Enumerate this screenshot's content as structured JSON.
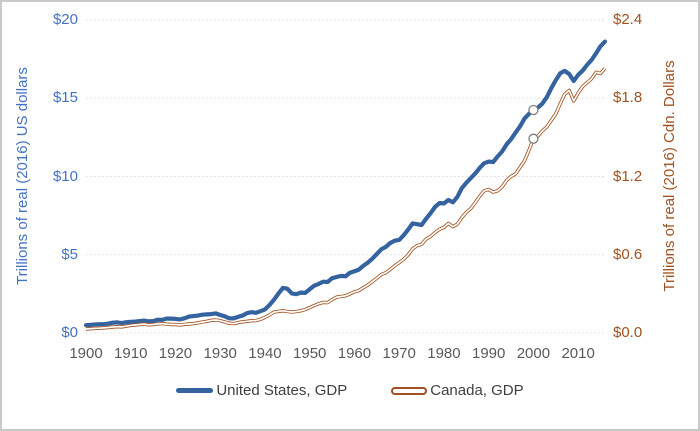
{
  "figure": {
    "background": "#FFFFFF",
    "border_color": "#CBC9C7"
  },
  "chart_data": {
    "type": "line",
    "title": "",
    "grid": "horizontal-dotted",
    "grid_color": "#D9D9D9",
    "legend_position": "bottom",
    "legend_text_color": "#404040",
    "x": {
      "label": "",
      "start": 1900,
      "end": 2016,
      "color": "#595959",
      "tick_years": [
        1900,
        1910,
        1920,
        1930,
        1940,
        1950,
        1960,
        1970,
        1980,
        1990,
        2000,
        2010
      ],
      "tick_labels": [
        "1900",
        "1910",
        "1920",
        "1930",
        "1940",
        "1950",
        "1960",
        "1970",
        "1980",
        "1990",
        "2000",
        "2010"
      ]
    },
    "y_left": {
      "label": "Trillions of real (2016) US dollars",
      "min": 0,
      "max": 20,
      "color": "#4472C4",
      "tick_values": [
        0,
        5,
        10,
        15,
        20
      ],
      "tick_labels": [
        "$0",
        "$5",
        "$10",
        "$15",
        "$20"
      ]
    },
    "y_right": {
      "label": "Trillions of real (2016) Cdn. Dollars",
      "min": 0,
      "max": 2.4,
      "color": "#A0511F",
      "tick_values": [
        0,
        0.6,
        1.2,
        1.8,
        2.4
      ],
      "tick_labels": [
        "$0.0",
        "$0.6",
        "$1.2",
        "$1.8",
        "$2.4"
      ]
    },
    "series": [
      {
        "name": "United States, GDP",
        "axis": "left",
        "color": "#3563A0",
        "style": "solid-thick",
        "first_year": 1900,
        "values": [
          0.5,
          0.52,
          0.54,
          0.56,
          0.56,
          0.6,
          0.66,
          0.68,
          0.63,
          0.69,
          0.71,
          0.73,
          0.76,
          0.79,
          0.74,
          0.76,
          0.85,
          0.84,
          0.92,
          0.92,
          0.9,
          0.87,
          0.94,
          1.05,
          1.08,
          1.11,
          1.17,
          1.19,
          1.21,
          1.25,
          1.15,
          1.07,
          0.94,
          0.93,
          1.03,
          1.12,
          1.27,
          1.33,
          1.29,
          1.39,
          1.51,
          1.78,
          2.12,
          2.52,
          2.88,
          2.83,
          2.53,
          2.48,
          2.58,
          2.56,
          2.8,
          3.02,
          3.14,
          3.28,
          3.26,
          3.5,
          3.58,
          3.65,
          3.62,
          3.85,
          3.95,
          4.05,
          4.3,
          4.5,
          4.75,
          5.05,
          5.35,
          5.5,
          5.75,
          5.9,
          5.95,
          6.25,
          6.6,
          7.0,
          6.95,
          6.9,
          7.3,
          7.65,
          8.05,
          8.3,
          8.28,
          8.5,
          8.35,
          8.7,
          9.25,
          9.6,
          9.9,
          10.2,
          10.55,
          10.85,
          10.95,
          10.92,
          11.28,
          11.6,
          12.05,
          12.38,
          12.8,
          13.2,
          13.7,
          14.0,
          14.25,
          14.4,
          14.66,
          15.07,
          15.64,
          16.16,
          16.6,
          16.75,
          16.55,
          16.1,
          16.5,
          16.76,
          17.13,
          17.45,
          17.88,
          18.32,
          18.62
        ]
      },
      {
        "name": "Canada, GDP",
        "axis": "right",
        "color": "#A0511F",
        "style": "double-line",
        "first_year": 1900,
        "values": [
          0.031,
          0.033,
          0.035,
          0.037,
          0.039,
          0.042,
          0.046,
          0.048,
          0.047,
          0.052,
          0.058,
          0.061,
          0.065,
          0.068,
          0.063,
          0.065,
          0.07,
          0.072,
          0.068,
          0.065,
          0.065,
          0.062,
          0.066,
          0.069,
          0.072,
          0.078,
          0.084,
          0.09,
          0.097,
          0.1,
          0.095,
          0.084,
          0.075,
          0.072,
          0.08,
          0.086,
          0.09,
          0.094,
          0.095,
          0.105,
          0.12,
          0.138,
          0.16,
          0.166,
          0.17,
          0.165,
          0.16,
          0.165,
          0.17,
          0.18,
          0.195,
          0.21,
          0.225,
          0.235,
          0.233,
          0.255,
          0.275,
          0.28,
          0.285,
          0.3,
          0.315,
          0.325,
          0.348,
          0.368,
          0.393,
          0.42,
          0.448,
          0.462,
          0.487,
          0.515,
          0.54,
          0.565,
          0.6,
          0.645,
          0.67,
          0.68,
          0.72,
          0.74,
          0.77,
          0.795,
          0.81,
          0.84,
          0.815,
          0.835,
          0.885,
          0.925,
          0.955,
          1.0,
          1.05,
          1.09,
          1.1,
          1.08,
          1.09,
          1.12,
          1.17,
          1.2,
          1.22,
          1.27,
          1.32,
          1.4,
          1.49,
          1.51,
          1.55,
          1.58,
          1.63,
          1.68,
          1.76,
          1.83,
          1.86,
          1.78,
          1.84,
          1.89,
          1.92,
          1.95,
          2.0,
          1.99,
          2.03
        ]
      }
    ],
    "highlight_markers": [
      {
        "series": "United States, GDP",
        "year": 2000,
        "value": 14.25,
        "fill": "#FFFFFF",
        "stroke": "#7F7F7F"
      },
      {
        "series": "Canada, GDP",
        "year": 2000,
        "value": 1.49,
        "fill": "#FFFFFF",
        "stroke": "#7F7F7F"
      }
    ]
  }
}
